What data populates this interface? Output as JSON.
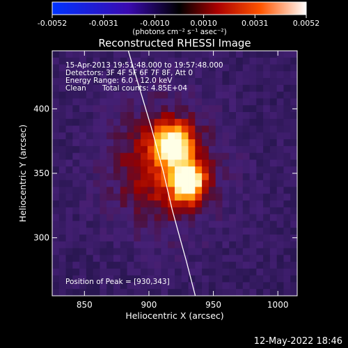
{
  "footer_date": "12-May-2022 18:46",
  "chart_data": {
    "type": "heatmap",
    "title": "Reconstructed RHESSI Image",
    "xlabel": "Heliocentric X (arcsec)",
    "ylabel": "Heliocentric Y (arcsec)",
    "xlim": [
      825,
      1015
    ],
    "ylim": [
      255,
      445
    ],
    "x_ticks": [
      850,
      900,
      950,
      1000
    ],
    "y_ticks": [
      300,
      350,
      400
    ],
    "colorbar": {
      "range": [
        -0.0052,
        0.0052
      ],
      "ticks": [
        -0.0052,
        -0.0031,
        -0.001,
        0.001,
        0.0031,
        0.0052
      ],
      "tick_labels": [
        "-0.0052",
        "-0.0031",
        "-0.0010",
        "0.0010",
        "0.0031",
        "0.0052"
      ],
      "unit_label": "(photons cm⁻² s⁻¹ asec⁻²)"
    },
    "annotations": [
      "15-Apr-2013 19:51:48.000 to 19:57:48.000",
      "Detectors: 3F 4F 5F 6F 7F 8F, Att 0",
      "Energy Range: 6.0 - 12.0 keV",
      "Clean",
      "Total counts: 4.85E+04"
    ],
    "peak_label": "Position of Peak = [930,343]",
    "peak_position": [
      930,
      343
    ],
    "limb_curve": {
      "x": [
        884,
        893,
        902,
        911,
        918,
        924,
        929,
        936
      ],
      "y": [
        445,
        415,
        385,
        352,
        322,
        300,
        282,
        255
      ]
    },
    "grid": false
  }
}
